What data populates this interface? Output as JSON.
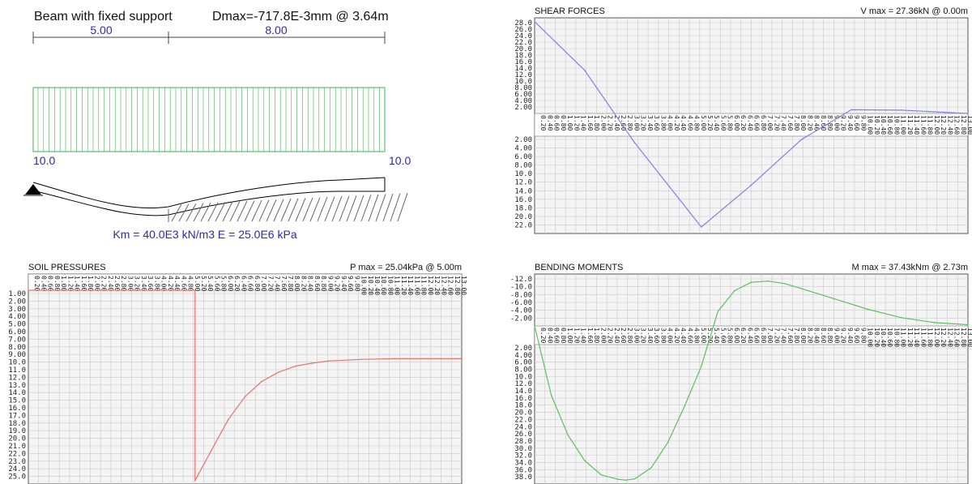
{
  "beam": {
    "title": "Beam with fixed support",
    "dmax": "Dmax=-717.8E-3mm @ 3.64m",
    "span_labels": [
      "5.00",
      "8.00"
    ],
    "load_left": "10.0",
    "load_right": "10.0",
    "properties": "Km = 40.0E3 kN/m3   E = 25.0E6 kPa",
    "colors": {
      "load": "#3fb24f",
      "text": "#2a2ab0",
      "beam": "#000000"
    }
  },
  "chart_data": [
    {
      "id": "shear",
      "type": "line",
      "title": "SHEAR FORCES",
      "max_label": "V max = 27.36kN @ 0.00m",
      "color": "#8080ee",
      "x_range": [
        0,
        13
      ],
      "x_tick_step": 0.2,
      "y_top": {
        "ticks": [
          "28.0",
          "26.0",
          "24.0",
          "22.0",
          "20.0",
          "18.0",
          "16.0",
          "14.0",
          "12.0",
          "10.0",
          "8.00",
          "6.00",
          "4.00",
          "2.00"
        ]
      },
      "y_bottom": {
        "ticks": [
          "2.00",
          "4.00",
          "6.00",
          "8.00",
          "10.0",
          "12.0",
          "14.0",
          "16.0",
          "18.0",
          "20.0",
          "22.0"
        ]
      },
      "ylim": [
        -28,
        22
      ],
      "x": [
        0,
        1.5,
        3,
        5,
        6.5,
        8,
        9.5,
        11,
        13
      ],
      "y": [
        27.36,
        12.9,
        -1.5,
        -21.0,
        -11.3,
        -0.8,
        1.1,
        1.0,
        0.0
      ]
    },
    {
      "id": "soil",
      "type": "line",
      "title": "SOIL PRESSURES",
      "max_label": "P max = 25.04kPa @ 5.00m",
      "color": "#ee7070",
      "x_range": [
        0,
        13
      ],
      "x_tick_step": 0.2,
      "y_top": {
        "ticks": []
      },
      "y_bottom": {
        "ticks": [
          "1.00",
          "2.00",
          "3.00",
          "4.00",
          "5.00",
          "6.00",
          "7.00",
          "8.00",
          "9.00",
          "10.0",
          "11.0",
          "12.0",
          "13.0",
          "14.0",
          "15.0",
          "16.0",
          "17.0",
          "18.0",
          "19.0",
          "20.0",
          "21.0",
          "22.0",
          "23.0",
          "24.0",
          "25.0"
        ]
      },
      "ylim": [
        0,
        25.5
      ],
      "x": [
        0,
        5,
        5,
        5.5,
        6,
        6.5,
        7,
        7.5,
        8,
        8.5,
        9,
        10,
        11,
        12,
        13
      ],
      "y": [
        0,
        0,
        25.04,
        21.0,
        17.0,
        14.0,
        12.0,
        10.8,
        10.0,
        9.6,
        9.3,
        9.1,
        9.0,
        9.0,
        9.0
      ]
    },
    {
      "id": "moment",
      "type": "line",
      "title": "BENDING MOMENTS",
      "max_label": "M max = 37.43kNm @ 2.73m",
      "color": "#5fbf5f",
      "x_range": [
        0,
        13
      ],
      "x_tick_step": 0.2,
      "y_top": {
        "ticks": [
          "-12.0",
          "-10.0",
          "-8.00",
          "-6.00",
          "-4.00",
          "-2.00"
        ]
      },
      "y_bottom": {
        "ticks": [
          "2.00",
          "4.00",
          "6.00",
          "8.00",
          "10.0",
          "12.0",
          "14.0",
          "16.0",
          "18.0",
          "20.0",
          "22.0",
          "24.0",
          "26.0",
          "28.0",
          "30.0",
          "32.0",
          "34.0",
          "36.0",
          "38.0"
        ]
      },
      "ylim": [
        -12.5,
        38.5
      ],
      "x": [
        0,
        0.5,
        1,
        1.5,
        2,
        2.5,
        2.73,
        3,
        3.5,
        4,
        4.5,
        5,
        5.5,
        6,
        6.5,
        7,
        7.5,
        8,
        9,
        10,
        11,
        12,
        13
      ],
      "y": [
        0,
        14,
        25,
        32,
        36,
        37.2,
        37.43,
        37.1,
        34,
        27,
        17,
        6,
        -3.5,
        -8.5,
        -10.5,
        -10.8,
        -10.2,
        -9.0,
        -6.5,
        -4.0,
        -2.0,
        -0.8,
        -0.3
      ]
    }
  ]
}
